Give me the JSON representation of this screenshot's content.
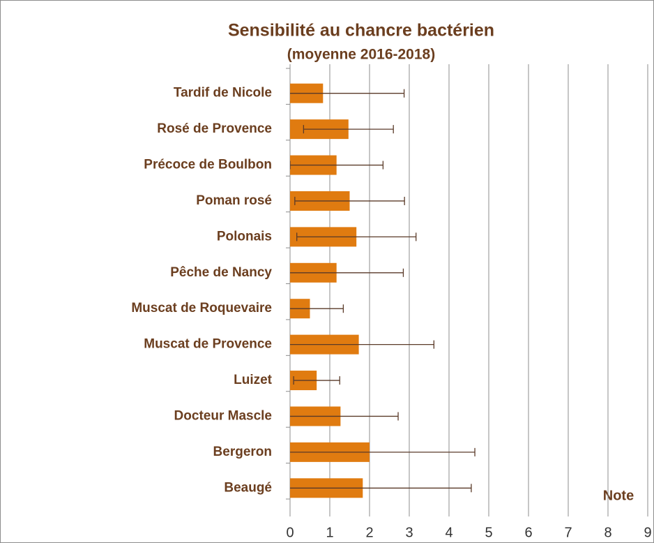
{
  "chart_data": {
    "type": "bar",
    "orientation": "horizontal",
    "title": "Sensibilité au chancre bactérien",
    "subtitle": "(moyenne 2016-2018)",
    "annotation": "Note",
    "categories": [
      "Tardif de Nicole",
      "Rosé de Provence",
      "Précoce de Boulbon",
      "Poman rosé",
      "Polonais",
      "Pêche de Nancy",
      "Muscat de Roquevaire",
      "Muscat de Provence",
      "Luizet",
      "Docteur Mascle",
      "Bergeron",
      "Beaugé"
    ],
    "values": [
      0.83,
      1.47,
      1.17,
      1.5,
      1.67,
      1.17,
      0.5,
      1.73,
      0.67,
      1.27,
      2.0,
      1.83
    ],
    "errors": [
      2.04,
      1.13,
      1.17,
      1.38,
      1.5,
      1.68,
      0.84,
      1.89,
      0.58,
      1.45,
      2.65,
      2.73
    ],
    "color": "#e07b10",
    "xlim": [
      0,
      9
    ],
    "xticks": [
      0,
      1,
      2,
      3,
      4,
      5,
      6,
      7,
      8,
      9
    ],
    "grid": true
  }
}
